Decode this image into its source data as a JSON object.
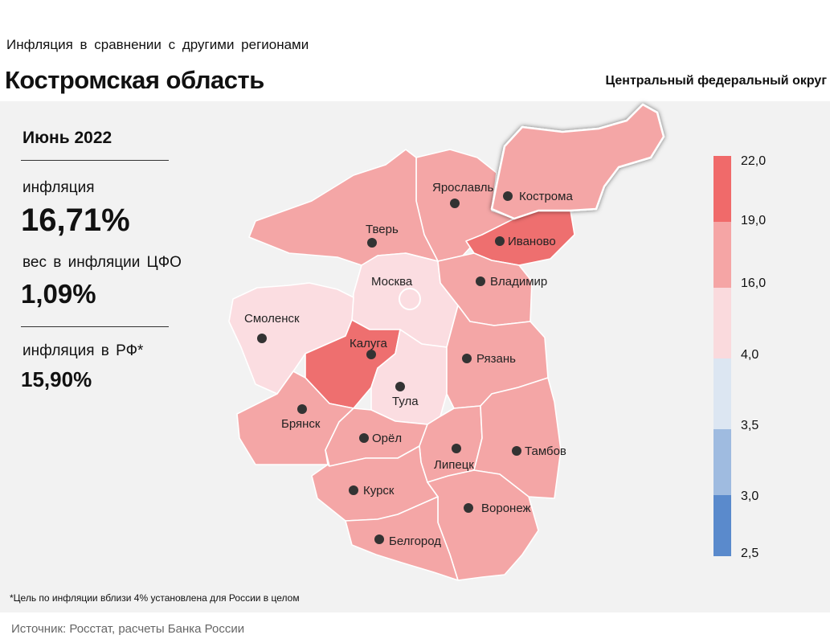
{
  "header": {
    "subtitle": "Инфляция в сравнении с другими регионами",
    "title": "Костромская область",
    "district": "Центральный федеральный округ"
  },
  "stats": {
    "period": "Июнь 2022",
    "inflation_label": "инфляция",
    "inflation_value": "16,71%",
    "weight_label": "вес в инфляции ЦФО",
    "weight_value": "1,09%",
    "rf_label": "инфляция в РФ*",
    "rf_value": "15,90%"
  },
  "legend": {
    "ticks": [
      "22,0",
      "19,0",
      "16,0",
      "4,0",
      "3,5",
      "3,0",
      "2,5"
    ],
    "bands": [
      {
        "color": "#f06a6a"
      },
      {
        "color": "#f5a5a5"
      },
      {
        "color": "#fadadd"
      },
      {
        "color": "#dce6f2"
      },
      {
        "color": "#9fbbe0"
      },
      {
        "color": "#5a8acc"
      }
    ]
  },
  "map": {
    "colors": {
      "high": "#ee6f6f",
      "mid": "#f4a6a6",
      "low": "#fbdde1",
      "border": "#ffffff",
      "dot": "#333333"
    },
    "regions": [
      {
        "id": "kostroma",
        "label": "Кострома",
        "fill": "mid",
        "highlight": true
      },
      {
        "id": "yaroslavl",
        "label": "Ярославль",
        "fill": "mid"
      },
      {
        "id": "ivanovo",
        "label": "Иваново",
        "fill": "high"
      },
      {
        "id": "tver",
        "label": "Тверь",
        "fill": "mid"
      },
      {
        "id": "moscow",
        "label": "Москва",
        "fill": "low",
        "city": true
      },
      {
        "id": "vladimir",
        "label": "Владимир",
        "fill": "mid"
      },
      {
        "id": "smolensk",
        "label": "Смоленск",
        "fill": "low"
      },
      {
        "id": "kaluga",
        "label": "Калуга",
        "fill": "high"
      },
      {
        "id": "tula",
        "label": "Тула",
        "fill": "low"
      },
      {
        "id": "ryazan",
        "label": "Рязань",
        "fill": "mid"
      },
      {
        "id": "bryansk",
        "label": "Брянск",
        "fill": "mid"
      },
      {
        "id": "orel",
        "label": "Орёл",
        "fill": "mid"
      },
      {
        "id": "lipetsk",
        "label": "Липецк",
        "fill": "mid"
      },
      {
        "id": "tambov",
        "label": "Тамбов",
        "fill": "mid"
      },
      {
        "id": "kursk",
        "label": "Курск",
        "fill": "mid"
      },
      {
        "id": "voronezh",
        "label": "Воронеж",
        "fill": "mid"
      },
      {
        "id": "belgorod",
        "label": "Белгород",
        "fill": "mid"
      }
    ]
  },
  "footnote": "*Цель по инфляции вблизи 4% установлена для России в целом",
  "source": "Источник: Росстат, расчеты Банка России"
}
